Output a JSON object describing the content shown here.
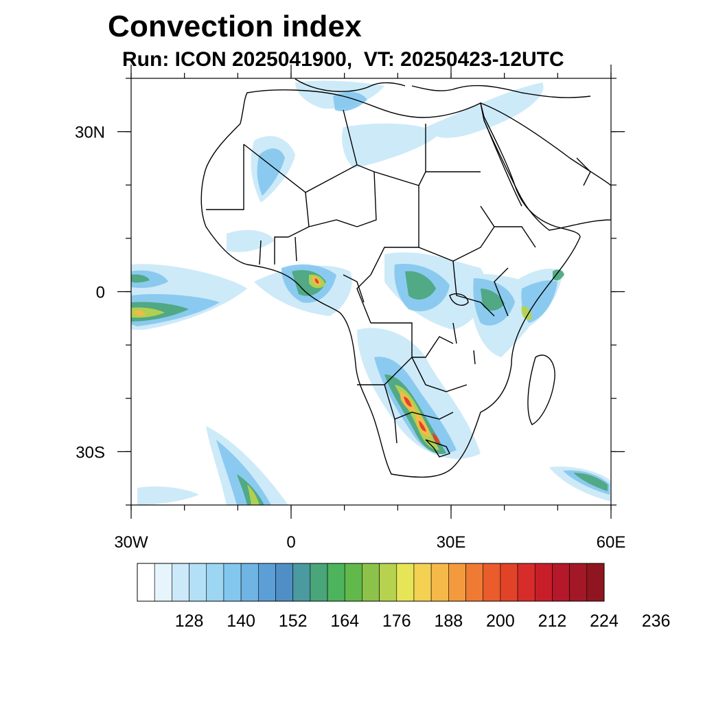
{
  "title": "Convection index",
  "subtitle": "Run: ICON 2025041900,  VT: 20250423-12UTC",
  "map": {
    "lon_range": [
      -30,
      60
    ],
    "lat_range": [
      -40,
      40
    ],
    "lat_ticks": [
      {
        "value": 30,
        "label": "30N"
      },
      {
        "value": 0,
        "label": "0"
      },
      {
        "value": -30,
        "label": "30S"
      }
    ],
    "lon_ticks": [
      {
        "value": -30,
        "label": "30W"
      },
      {
        "value": 0,
        "label": "0"
      },
      {
        "value": 30,
        "label": "30E"
      },
      {
        "value": 60,
        "label": "60E"
      }
    ],
    "minor_lon_step": 10,
    "minor_lat_step": 10
  },
  "colorbar": {
    "colors": [
      "#ffffff",
      "#e6f4fb",
      "#cbe9f8",
      "#b3e0f6",
      "#9cd6f3",
      "#84c7ee",
      "#70b4e3",
      "#5c9fd6",
      "#4f8fc6",
      "#4a9aa0",
      "#4aa57a",
      "#4db35c",
      "#61b94c",
      "#8cc24a",
      "#b6d24e",
      "#e6e557",
      "#f4d152",
      "#f5b94a",
      "#f39a3f",
      "#ef7a34",
      "#ea5c2c",
      "#e14329",
      "#d62d2a",
      "#c81e2a",
      "#b4182a",
      "#a21827",
      "#8f1620"
    ],
    "labels": [
      "128",
      "140",
      "152",
      "164",
      "176",
      "188",
      "200",
      "212",
      "224",
      "236"
    ]
  }
}
